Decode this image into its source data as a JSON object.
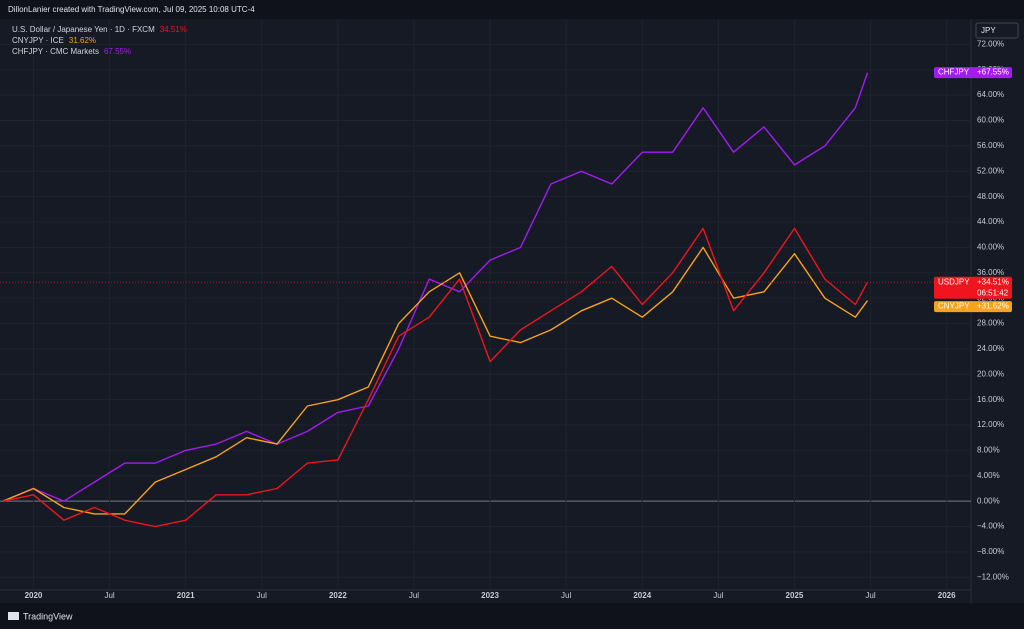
{
  "header": "DillonLanier created with TradingView.com, Jul 09, 2025 10:08 UTC-4",
  "footer": "TradingView",
  "chart_data": {
    "type": "line",
    "currency": "JPY",
    "countdown": "06:51:42",
    "x": [
      2019.8,
      2020.0,
      2020.2,
      2020.4,
      2020.6,
      2020.8,
      2021.0,
      2021.2,
      2021.4,
      2021.6,
      2021.8,
      2022.0,
      2022.2,
      2022.4,
      2022.6,
      2022.8,
      2023.0,
      2023.2,
      2023.4,
      2023.6,
      2023.8,
      2024.0,
      2024.2,
      2024.4,
      2024.6,
      2024.8,
      2025.0,
      2025.2,
      2025.4,
      2025.48
    ],
    "series": [
      {
        "name": "U.S. Dollar / Japanese Yen · 1D · FXCM",
        "symbol": "USDJPY",
        "legend_value": "34.51%",
        "price_label": "+34.51%",
        "color": "#f0141e",
        "values": [
          0,
          1,
          -3,
          -1,
          -3,
          -4,
          -3,
          1,
          1,
          2,
          6,
          6.5,
          16,
          26,
          29,
          35,
          22,
          27,
          30,
          33,
          37,
          31,
          36,
          43,
          30,
          36,
          43,
          35,
          31,
          34.51
        ]
      },
      {
        "name": "CNYJPY · ICE",
        "symbol": "CNYJPY",
        "legend_value": "31.62%",
        "price_label": "+31.62%",
        "color": "#f7a21b",
        "values": [
          0,
          2,
          -1,
          -2,
          -2,
          3,
          5,
          7,
          10,
          9,
          15,
          16,
          18,
          28,
          33,
          36,
          26,
          25,
          27,
          30,
          32,
          29,
          33,
          40,
          32,
          33,
          39,
          32,
          29,
          31.62
        ]
      },
      {
        "name": "CHFJPY · CMC Markets",
        "symbol": "CHFJPY",
        "legend_value": "67.55%",
        "price_label": "+67.55%",
        "color": "#a21cf0",
        "values": [
          0,
          2,
          0,
          3,
          6,
          6,
          8,
          9,
          11,
          9,
          11,
          14,
          15,
          24,
          35,
          33,
          38,
          40,
          50,
          52,
          50,
          55,
          55,
          62,
          55,
          59,
          53,
          56,
          62,
          67.55
        ]
      }
    ],
    "xlim": [
      2019.78,
      2026.16
    ],
    "xticks": [
      {
        "value": 2020,
        "label": "2020"
      },
      {
        "value": 2020.5,
        "label": "Jul"
      },
      {
        "value": 2021,
        "label": "2021"
      },
      {
        "value": 2021.5,
        "label": "Jul"
      },
      {
        "value": 2022,
        "label": "2022"
      },
      {
        "value": 2022.5,
        "label": "Jul"
      },
      {
        "value": 2023,
        "label": "2023"
      },
      {
        "value": 2023.5,
        "label": "Jul"
      },
      {
        "value": 2024,
        "label": "2024"
      },
      {
        "value": 2024.5,
        "label": "Jul"
      },
      {
        "value": 2025,
        "label": "2025"
      },
      {
        "value": 2025.5,
        "label": "Jul"
      },
      {
        "value": 2026,
        "label": "2026"
      }
    ],
    "ylim": [
      -14,
      76
    ],
    "yticks": [
      {
        "value": -12,
        "label": "−12.00%"
      },
      {
        "value": -8,
        "label": "−8.00%"
      },
      {
        "value": -4,
        "label": "−4.00%"
      },
      {
        "value": 0,
        "label": "0.00%"
      },
      {
        "value": 4,
        "label": "4.00%"
      },
      {
        "value": 8,
        "label": "8.00%"
      },
      {
        "value": 12,
        "label": "12.00%"
      },
      {
        "value": 16,
        "label": "16.00%"
      },
      {
        "value": 20,
        "label": "20.00%"
      },
      {
        "value": 24,
        "label": "24.00%"
      },
      {
        "value": 28,
        "label": "28.00%"
      },
      {
        "value": 32,
        "label": "32.00%"
      },
      {
        "value": 36,
        "label": "36.00%"
      },
      {
        "value": 40,
        "label": "40.00%"
      },
      {
        "value": 44,
        "label": "44.00%"
      },
      {
        "value": 48,
        "label": "48.00%"
      },
      {
        "value": 52,
        "label": "52.00%"
      },
      {
        "value": 56,
        "label": "56.00%"
      },
      {
        "value": 60,
        "label": "60.00%"
      },
      {
        "value": 64,
        "label": "64.00%"
      },
      {
        "value": 68,
        "label": "68.00%"
      },
      {
        "value": 72,
        "label": "72.00%"
      }
    ],
    "grid": true
  }
}
